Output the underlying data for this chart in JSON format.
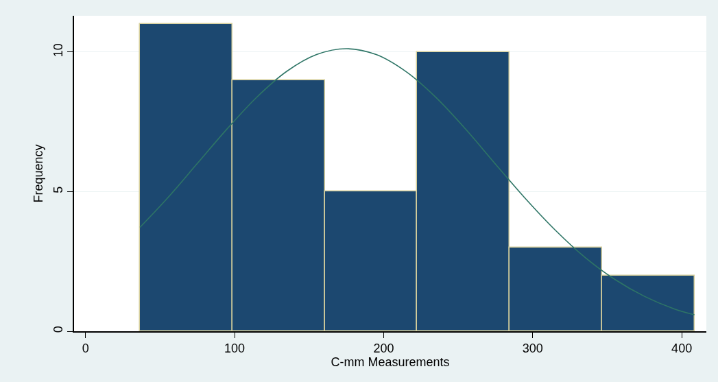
{
  "chart_data": {
    "type": "histogram",
    "xlabel": "C-mm Measurements",
    "ylabel": "Frequency",
    "bins": [
      36.5,
      98.5,
      160.5,
      222.5,
      284.5,
      346.5,
      408.5
    ],
    "values": [
      11,
      9,
      5,
      10,
      3,
      2
    ],
    "color": "#1c4870",
    "series": [
      {
        "type": "line",
        "color": "#2e7566",
        "x": [
          36.5,
          55,
          75,
          95,
          115,
          135,
          155,
          175,
          195,
          215,
          235,
          255,
          275,
          295,
          315,
          335,
          355,
          375,
          395,
          408.5
        ],
        "values": [
          3.72,
          4.77,
          6.01,
          7.25,
          8.39,
          9.31,
          9.91,
          10.12,
          9.91,
          9.3,
          8.38,
          7.24,
          5.99,
          4.76,
          3.63,
          2.65,
          1.86,
          1.25,
          0.8,
          0.59
        ]
      }
    ],
    "xlim": [
      -7.7,
      416.5
    ],
    "ylim": [
      0,
      11.3
    ],
    "xticks": [
      0,
      100,
      200,
      300,
      400
    ],
    "yticks": [
      0,
      5,
      10
    ],
    "grid": "y"
  }
}
